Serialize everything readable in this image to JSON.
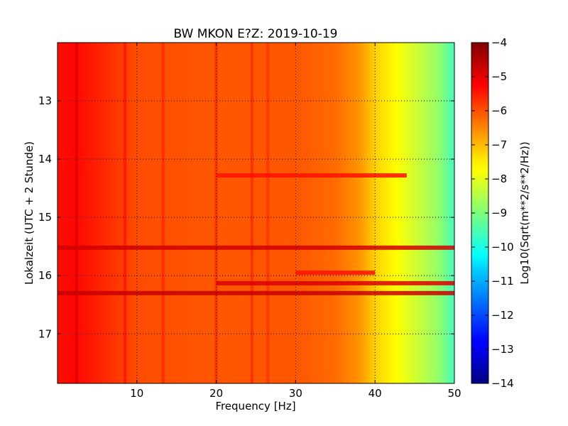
{
  "chart_data": {
    "type": "heatmap",
    "title": "BW MKON E?Z: 2019-10-19",
    "xlabel": "Frequency [Hz]",
    "ylabel": "Lokalzeit (UTC + 2 Stunde)",
    "xlim": [
      0,
      50
    ],
    "ylim": [
      12,
      17.85
    ],
    "y_inverted": true,
    "x_ticks": [
      10,
      20,
      30,
      40,
      50
    ],
    "y_ticks": [
      13,
      14,
      15,
      16,
      17
    ],
    "grid": true,
    "colormap": "jet",
    "colorbar": {
      "label": "Log10(Sqrt(m**2/s**2/Hz))",
      "range": [
        -14,
        -4
      ],
      "ticks": [
        -4,
        -5,
        -6,
        -7,
        -8,
        -9,
        -10,
        -11,
        -12,
        -13,
        -14
      ]
    },
    "background_level_by_frequency": [
      {
        "freq": 0,
        "level": -5.4
      },
      {
        "freq": 2,
        "level": -5.3
      },
      {
        "freq": 10,
        "level": -6.0
      },
      {
        "freq": 20,
        "level": -6.1
      },
      {
        "freq": 30,
        "level": -6.1
      },
      {
        "freq": 35,
        "level": -6.3
      },
      {
        "freq": 38,
        "level": -6.7
      },
      {
        "freq": 40,
        "level": -7.3
      },
      {
        "freq": 43,
        "level": -7.8
      },
      {
        "freq": 46,
        "level": -8.4
      },
      {
        "freq": 48,
        "level": -8.8
      },
      {
        "freq": 50,
        "level": -9.6
      }
    ],
    "vertical_lines": [
      {
        "freq": 2.4,
        "level": -4.9
      },
      {
        "freq": 8.5,
        "level": -5.4
      },
      {
        "freq": 13.3,
        "level": -5.6
      },
      {
        "freq": 20.0,
        "level": -5.6
      },
      {
        "freq": 24.5,
        "level": -5.6
      },
      {
        "freq": 26.5,
        "level": -5.7
      }
    ],
    "horizontal_bands": [
      {
        "time": 15.52,
        "freq_start": 0,
        "freq_end": 50,
        "level": -4.8
      },
      {
        "time": 16.13,
        "freq_start": 20,
        "freq_end": 50,
        "level": -4.9
      },
      {
        "time": 16.3,
        "freq_start": 0,
        "freq_end": 50,
        "level": -4.7
      },
      {
        "time": 14.28,
        "freq_start": 20,
        "freq_end": 44,
        "level": -5.4
      },
      {
        "time": 15.95,
        "freq_start": 30,
        "freq_end": 40,
        "level": -5.4
      }
    ]
  }
}
